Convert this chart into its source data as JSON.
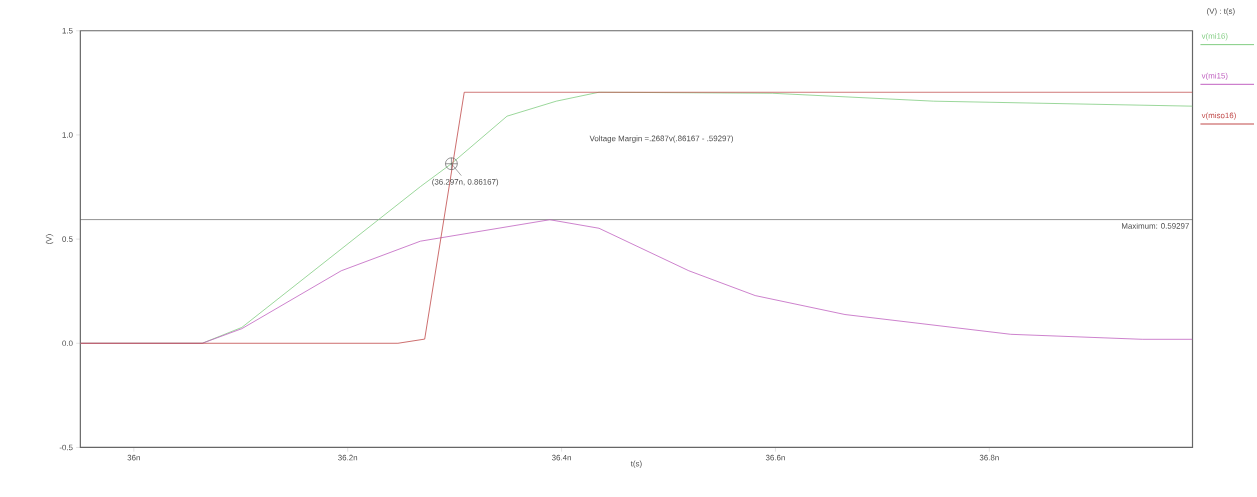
{
  "chart_data": {
    "type": "line",
    "xlabel": "t(s)",
    "ylabel": "(V)",
    "legend_title": "(V) : t(s)",
    "legend": "top right",
    "xlim": [
      35.95,
      36.99
    ],
    "ylim": [
      -0.5,
      1.5
    ],
    "xticks": [
      {
        "value": 36,
        "label": "36n"
      },
      {
        "value": 36.2,
        "label": "36.2n"
      },
      {
        "value": 36.4,
        "label": "36.4n"
      },
      {
        "value": 36.6,
        "label": "36.6n"
      },
      {
        "value": 36.8,
        "label": "36.8n"
      }
    ],
    "yticks": [
      {
        "value": -0.5,
        "label": "-0.5"
      },
      {
        "value": 0,
        "label": "0.0"
      },
      {
        "value": 0.5,
        "label": "0.5"
      },
      {
        "value": 1,
        "label": "1.0"
      },
      {
        "value": 1.5,
        "label": "1.5"
      }
    ],
    "series": [
      {
        "name": "v(mi16)",
        "color": "#80cc80",
        "x": [
          35.95,
          36.064,
          36.101,
          36.268,
          36.297,
          36.349,
          36.395,
          36.435,
          36.597,
          36.748,
          36.99
        ],
        "values": [
          0,
          0,
          0.076,
          0.752,
          0.862,
          1.09,
          1.162,
          1.205,
          1.2,
          1.162,
          1.138
        ]
      },
      {
        "name": "v(mi15)",
        "color": "#c060c0",
        "x": [
          35.95,
          36.064,
          36.101,
          36.194,
          36.268,
          36.389,
          36.435,
          36.519,
          36.581,
          36.665,
          36.82,
          36.943,
          36.99
        ],
        "values": [
          0,
          0,
          0.07,
          0.348,
          0.49,
          0.593,
          0.552,
          0.348,
          0.229,
          0.138,
          0.043,
          0.019,
          0.019
        ]
      },
      {
        "name": "v(miso16)",
        "color": "#c04848",
        "x": [
          35.95,
          36.247,
          36.272,
          36.309,
          36.99
        ],
        "values": [
          0,
          0,
          0.02,
          1.205,
          1.205
        ]
      }
    ],
    "ref_lines": [
      {
        "axis": "y",
        "value": 0.59297,
        "label": "Maximum: 0.59297",
        "color": "#404040"
      }
    ],
    "annotations": [
      "Voltage Margin =.2687v(.86167 - .59297)",
      {
        "text": "(36.297n, 0.86167)",
        "x": 36.297,
        "y": 0.86167
      }
    ],
    "grid": false,
    "marker": "none",
    "line_style": "solid"
  }
}
